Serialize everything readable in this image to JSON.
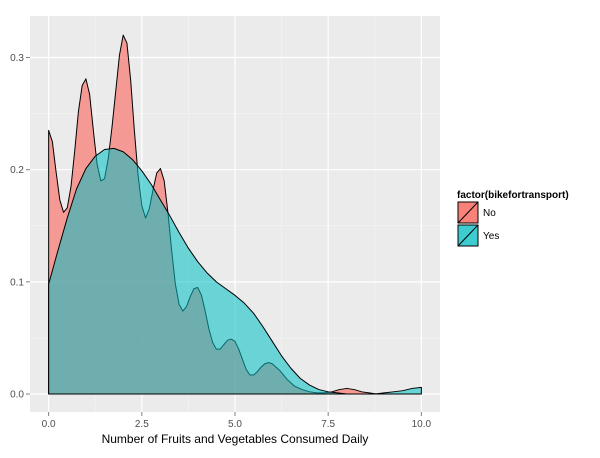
{
  "chart_data": {
    "type": "area",
    "subtype": "density",
    "xlabel": "Number of Fruits and Vegetables Consumed Daily",
    "ylabel": "",
    "xlim": [
      -0.5,
      10.5
    ],
    "ylim": [
      -0.016,
      0.337
    ],
    "x_ticks": [
      0,
      2.5,
      5,
      7.5,
      10
    ],
    "x_tick_labels": [
      "0.0",
      "2.5",
      "5.0",
      "7.5",
      "10.0"
    ],
    "y_ticks": [
      0,
      0.1,
      0.2,
      0.3
    ],
    "y_tick_labels": [
      "0.0",
      "0.1",
      "0.2",
      "0.3"
    ],
    "grid": true,
    "legend": {
      "title": "factor(bikefortransport)",
      "position": "right"
    },
    "series": [
      {
        "name": "No",
        "color": "#F8766D",
        "fill_opacity": 0.7,
        "points": [
          [
            0,
            0.235
          ],
          [
            0.1,
            0.225
          ],
          [
            0.2,
            0.198
          ],
          [
            0.3,
            0.173
          ],
          [
            0.4,
            0.162
          ],
          [
            0.5,
            0.166
          ],
          [
            0.6,
            0.185
          ],
          [
            0.7,
            0.217
          ],
          [
            0.8,
            0.252
          ],
          [
            0.9,
            0.275
          ],
          [
            1.0,
            0.281
          ],
          [
            1.1,
            0.267
          ],
          [
            1.2,
            0.235
          ],
          [
            1.3,
            0.205
          ],
          [
            1.4,
            0.19
          ],
          [
            1.5,
            0.192
          ],
          [
            1.6,
            0.21
          ],
          [
            1.7,
            0.238
          ],
          [
            1.8,
            0.27
          ],
          [
            1.9,
            0.302
          ],
          [
            2.0,
            0.32
          ],
          [
            2.1,
            0.313
          ],
          [
            2.2,
            0.28
          ],
          [
            2.3,
            0.235
          ],
          [
            2.4,
            0.195
          ],
          [
            2.5,
            0.168
          ],
          [
            2.6,
            0.157
          ],
          [
            2.7,
            0.165
          ],
          [
            2.8,
            0.182
          ],
          [
            2.9,
            0.197
          ],
          [
            3.0,
            0.201
          ],
          [
            3.1,
            0.19
          ],
          [
            3.2,
            0.162
          ],
          [
            3.3,
            0.128
          ],
          [
            3.4,
            0.098
          ],
          [
            3.5,
            0.08
          ],
          [
            3.6,
            0.074
          ],
          [
            3.7,
            0.078
          ],
          [
            3.8,
            0.087
          ],
          [
            3.9,
            0.094
          ],
          [
            4.0,
            0.095
          ],
          [
            4.1,
            0.088
          ],
          [
            4.2,
            0.074
          ],
          [
            4.3,
            0.058
          ],
          [
            4.4,
            0.046
          ],
          [
            4.5,
            0.04
          ],
          [
            4.6,
            0.04
          ],
          [
            4.7,
            0.044
          ],
          [
            4.8,
            0.048
          ],
          [
            4.9,
            0.049
          ],
          [
            5.0,
            0.047
          ],
          [
            5.1,
            0.04
          ],
          [
            5.2,
            0.031
          ],
          [
            5.3,
            0.022
          ],
          [
            5.4,
            0.017
          ],
          [
            5.5,
            0.017
          ],
          [
            5.6,
            0.02
          ],
          [
            5.7,
            0.024
          ],
          [
            5.8,
            0.027
          ],
          [
            5.9,
            0.028
          ],
          [
            6.0,
            0.027
          ],
          [
            6.2,
            0.021
          ],
          [
            6.4,
            0.013
          ],
          [
            6.6,
            0.007
          ],
          [
            6.8,
            0.004
          ],
          [
            7.0,
            0.002
          ],
          [
            7.2,
            0.001
          ],
          [
            7.4,
            0.001
          ],
          [
            7.6,
            0.002
          ],
          [
            7.8,
            0.004
          ],
          [
            8.0,
            0.005
          ],
          [
            8.2,
            0.004
          ],
          [
            8.4,
            0.002
          ],
          [
            8.6,
            0.001
          ],
          [
            8.8,
            0.0
          ],
          [
            9.0,
            0.0
          ],
          [
            9.3,
            0.0
          ],
          [
            9.6,
            0.0
          ],
          [
            10.0,
            0.0
          ]
        ]
      },
      {
        "name": "Yes",
        "color": "#00BFC4",
        "fill_opacity": 0.55,
        "points": [
          [
            0,
            0.098
          ],
          [
            0.25,
            0.128
          ],
          [
            0.5,
            0.157
          ],
          [
            0.75,
            0.183
          ],
          [
            1.0,
            0.201
          ],
          [
            1.25,
            0.212
          ],
          [
            1.5,
            0.218
          ],
          [
            1.75,
            0.219
          ],
          [
            2.0,
            0.216
          ],
          [
            2.25,
            0.209
          ],
          [
            2.5,
            0.199
          ],
          [
            2.75,
            0.187
          ],
          [
            3.0,
            0.173
          ],
          [
            3.25,
            0.159
          ],
          [
            3.5,
            0.144
          ],
          [
            3.75,
            0.13
          ],
          [
            4.0,
            0.118
          ],
          [
            4.25,
            0.108
          ],
          [
            4.5,
            0.1
          ],
          [
            4.75,
            0.094
          ],
          [
            5.0,
            0.088
          ],
          [
            5.25,
            0.081
          ],
          [
            5.5,
            0.072
          ],
          [
            5.75,
            0.06
          ],
          [
            6.0,
            0.047
          ],
          [
            6.25,
            0.034
          ],
          [
            6.5,
            0.023
          ],
          [
            6.75,
            0.014
          ],
          [
            7.0,
            0.008
          ],
          [
            7.25,
            0.004
          ],
          [
            7.5,
            0.002
          ],
          [
            7.75,
            0.001
          ],
          [
            8.0,
            0.0
          ],
          [
            8.25,
            0.0
          ],
          [
            8.5,
            0.0
          ],
          [
            8.75,
            0.0
          ],
          [
            9.0,
            0.001
          ],
          [
            9.25,
            0.002
          ],
          [
            9.5,
            0.003
          ],
          [
            9.75,
            0.005
          ],
          [
            10.0,
            0.006
          ]
        ]
      }
    ]
  }
}
